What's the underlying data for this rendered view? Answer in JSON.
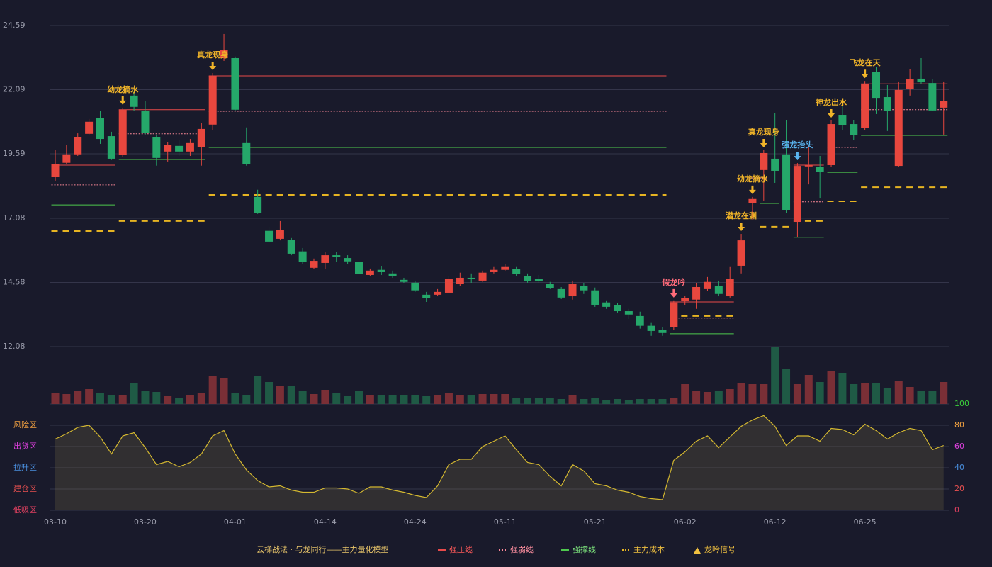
{
  "chart_data": [
    {
      "type": "candlestick",
      "ylim": [
        12.08,
        24.59
      ],
      "yticks": [
        12.08,
        14.58,
        17.08,
        19.59,
        22.09,
        24.59
      ],
      "grid": true,
      "up_color": "#e8473e",
      "down_color": "#25a86a",
      "ohlc": [
        [
          18.68,
          19.73,
          18.52,
          19.18
        ],
        [
          19.24,
          19.93,
          19.18,
          19.57
        ],
        [
          19.57,
          20.39,
          19.51,
          20.23
        ],
        [
          20.37,
          20.95,
          20.34,
          20.84
        ],
        [
          21.0,
          21.25,
          19.98,
          20.17
        ],
        [
          20.28,
          20.45,
          19.35,
          19.4
        ],
        [
          19.54,
          21.39,
          19.48,
          21.31
        ],
        [
          21.86,
          22.05,
          21.25,
          21.42
        ],
        [
          21.25,
          21.66,
          20.34,
          20.42
        ],
        [
          20.23,
          20.34,
          19.13,
          19.43
        ],
        [
          19.68,
          20.06,
          19.29,
          19.93
        ],
        [
          19.9,
          20.12,
          19.51,
          19.68
        ],
        [
          19.68,
          20.17,
          19.51,
          20.01
        ],
        [
          19.84,
          20.78,
          19.13,
          20.56
        ],
        [
          20.73,
          22.74,
          20.51,
          22.63
        ],
        [
          23.32,
          24.26,
          23.21,
          23.65
        ],
        [
          23.32,
          23.38,
          21.25,
          21.31
        ],
        [
          20.01,
          20.62,
          19.13,
          19.18
        ],
        [
          17.91,
          18.19,
          17.25,
          17.28
        ],
        [
          16.59,
          16.75,
          16.12,
          16.17
        ],
        [
          16.28,
          16.97,
          16.22,
          16.61
        ],
        [
          16.25,
          16.31,
          15.64,
          15.7
        ],
        [
          15.79,
          15.92,
          15.31,
          15.37
        ],
        [
          15.15,
          15.51,
          15.09,
          15.42
        ],
        [
          15.34,
          15.75,
          15.09,
          15.64
        ],
        [
          15.64,
          15.78,
          15.37,
          15.56
        ],
        [
          15.53,
          15.64,
          15.31,
          15.4
        ],
        [
          15.37,
          15.42,
          14.62,
          14.9
        ],
        [
          14.87,
          15.12,
          14.82,
          15.04
        ],
        [
          15.07,
          15.2,
          14.87,
          14.98
        ],
        [
          14.93,
          15.04,
          14.76,
          14.82
        ],
        [
          14.68,
          14.76,
          14.54,
          14.6
        ],
        [
          14.57,
          14.62,
          14.21,
          14.27
        ],
        [
          14.1,
          14.21,
          13.82,
          13.96
        ],
        [
          14.1,
          14.32,
          14.04,
          14.21
        ],
        [
          14.18,
          14.82,
          14.16,
          14.73
        ],
        [
          14.51,
          14.96,
          14.43,
          14.76
        ],
        [
          14.76,
          14.93,
          14.54,
          14.71
        ],
        [
          14.65,
          15.04,
          14.6,
          14.96
        ],
        [
          14.98,
          15.18,
          14.93,
          15.07
        ],
        [
          15.07,
          15.31,
          15.01,
          15.18
        ],
        [
          15.09,
          15.18,
          14.82,
          14.9
        ],
        [
          14.82,
          14.93,
          14.57,
          14.62
        ],
        [
          14.71,
          14.87,
          14.54,
          14.62
        ],
        [
          14.51,
          14.6,
          14.32,
          14.37
        ],
        [
          14.32,
          14.4,
          13.93,
          13.99
        ],
        [
          14.04,
          14.65,
          13.91,
          14.51
        ],
        [
          14.43,
          14.54,
          14.13,
          14.27
        ],
        [
          14.27,
          14.38,
          13.63,
          13.71
        ],
        [
          13.8,
          13.88,
          13.55,
          13.63
        ],
        [
          13.69,
          13.77,
          13.41,
          13.46
        ],
        [
          13.46,
          13.55,
          13.16,
          13.33
        ],
        [
          13.27,
          13.44,
          12.78,
          12.89
        ],
        [
          12.89,
          13.0,
          12.5,
          12.69
        ],
        [
          12.72,
          12.83,
          12.5,
          12.61
        ],
        [
          12.83,
          13.88,
          12.72,
          13.8
        ],
        [
          13.85,
          14.04,
          13.71,
          13.96
        ],
        [
          13.91,
          14.54,
          13.55,
          14.4
        ],
        [
          14.32,
          14.79,
          14.24,
          14.6
        ],
        [
          14.43,
          14.65,
          14.04,
          14.13
        ],
        [
          14.04,
          15.18,
          13.99,
          14.73
        ],
        [
          15.23,
          16.47,
          14.93,
          16.22
        ],
        [
          17.66,
          17.91,
          17.03,
          17.83
        ],
        [
          18.96,
          19.73,
          17.77,
          19.62
        ],
        [
          19.4,
          21.17,
          18.46,
          18.93
        ],
        [
          19.57,
          20.89,
          17.3,
          17.41
        ],
        [
          16.94,
          19.23,
          16.36,
          19.12
        ],
        [
          19.1,
          19.84,
          18.4,
          19.15
        ],
        [
          19.07,
          19.51,
          17.85,
          18.9
        ],
        [
          19.15,
          20.89,
          19.07,
          20.75
        ],
        [
          21.11,
          21.44,
          20.53,
          20.7
        ],
        [
          20.75,
          20.89,
          20.14,
          20.31
        ],
        [
          20.61,
          22.43,
          20.53,
          22.32
        ],
        [
          22.79,
          22.96,
          21.14,
          21.77
        ],
        [
          21.8,
          22.27,
          20.48,
          21.25
        ],
        [
          19.12,
          22.41,
          19.07,
          22.08
        ],
        [
          22.13,
          22.88,
          21.86,
          22.49
        ],
        [
          22.52,
          23.32,
          22.32,
          22.38
        ],
        [
          22.35,
          22.49,
          21.25,
          21.28
        ],
        [
          21.39,
          22.41,
          20.34,
          21.64
        ]
      ],
      "levels": [
        {
          "name": "强压线",
          "color": "#e84a4a",
          "text_color": "#ff5a5a",
          "dashed": false,
          "segments": [
            [
              0,
              5,
              19.15
            ],
            [
              6,
              13,
              21.31
            ],
            [
              14,
              54,
              22.63
            ],
            [
              55,
              60,
              13.82
            ],
            [
              66,
              68,
              19.15
            ],
            [
              72,
              79,
              22.32
            ]
          ]
        },
        {
          "name": "强弱线",
          "color": "#ff8a9a",
          "text_color": "#ff8fa0",
          "dashed": true,
          "segments": [
            [
              0,
              5,
              18.38
            ],
            [
              6,
              13,
              20.37
            ],
            [
              14,
              54,
              21.25
            ],
            [
              55,
              60,
              13.19
            ],
            [
              62,
              63,
              18.65
            ],
            [
              66,
              68,
              17.72
            ],
            [
              69,
              71,
              19.84
            ],
            [
              72,
              79,
              21.31
            ]
          ]
        },
        {
          "name": "强撑线",
          "color": "#4ec94e",
          "text_color": "#7be07b",
          "dashed": false,
          "segments": [
            [
              0,
              5,
              17.6
            ],
            [
              6,
              13,
              19.37
            ],
            [
              14,
              54,
              19.84
            ],
            [
              55,
              60,
              12.58
            ],
            [
              63,
              64,
              17.66
            ],
            [
              66,
              68,
              16.34
            ],
            [
              69,
              71,
              18.87
            ],
            [
              72,
              79,
              20.31
            ]
          ]
        },
        {
          "name": "主力成本",
          "color": "#e6b422",
          "text_color": "#f0c040",
          "dashed": true,
          "segments": [
            [
              0,
              5,
              16.58
            ],
            [
              6,
              13,
              16.97
            ],
            [
              14,
              54,
              17.99
            ],
            [
              55,
              60,
              13.27
            ],
            [
              63,
              65,
              16.75
            ],
            [
              66,
              68,
              16.97
            ],
            [
              69,
              71,
              17.74
            ],
            [
              72,
              79,
              18.29
            ]
          ]
        }
      ],
      "signals": [
        {
          "label": "幼龙摘水",
          "index": 6,
          "color": "#f0b429"
        },
        {
          "label": "真龙现身",
          "index": 14,
          "color": "#f0b429"
        },
        {
          "label": "假龙吟",
          "index": 55,
          "color": "#ff6b7a"
        },
        {
          "label": "潜龙在渊",
          "index": 61,
          "color": "#f0b429"
        },
        {
          "label": "幼龙摘水",
          "index": 62,
          "color": "#f0b429"
        },
        {
          "label": "真龙现身",
          "index": 63,
          "color": "#f0b429"
        },
        {
          "label": "强龙抬头",
          "index": 66,
          "color": "#5ab4f0"
        },
        {
          "label": "神龙出水",
          "index": 69,
          "color": "#f0b429"
        },
        {
          "label": "飞龙在天",
          "index": 72,
          "color": "#f0b429"
        }
      ],
      "legend_title": "云梯战法 · 与龙同行——主力量化模型",
      "legend_title_color": "#e8c56a",
      "signal_legend": {
        "name": "龙吟信号",
        "color": "#f0c040"
      }
    },
    {
      "type": "bar",
      "ylim": [
        0,
        81
      ],
      "up_color": "#7a2f36",
      "down_color": "#1f5a45",
      "values": [
        16,
        14,
        19,
        21,
        15,
        13,
        13,
        29,
        18,
        17,
        11,
        8,
        12,
        15,
        39,
        37,
        15,
        13,
        39,
        31,
        26,
        25,
        18,
        14,
        20,
        15,
        11,
        18,
        12,
        12,
        12,
        12,
        12,
        11,
        12,
        16,
        12,
        12,
        14,
        14,
        14,
        8,
        9,
        9,
        8,
        7,
        12,
        7,
        8,
        6,
        7,
        6,
        7,
        7,
        7,
        8,
        28,
        19,
        17,
        18,
        21,
        29,
        28,
        28,
        81,
        49,
        28,
        41,
        31,
        46,
        44,
        28,
        29,
        30,
        23,
        32,
        24,
        19,
        19,
        31
      ]
    },
    {
      "type": "area",
      "color": "#d4b830",
      "ylim": [
        0,
        100
      ],
      "yticks": [
        0,
        20,
        40,
        60,
        80,
        100
      ],
      "ytick_colors": [
        "#e04060",
        "#e85050",
        "#4a90e0",
        "#e040e0",
        "#f0a040",
        "#3ad13a"
      ],
      "zones": [
        {
          "value": 80,
          "label": "风险区",
          "color": "#f0a040"
        },
        {
          "value": 60,
          "label": "出货区",
          "color": "#e040e0"
        },
        {
          "value": 40,
          "label": "拉升区",
          "color": "#4a90e0"
        },
        {
          "value": 20,
          "label": "建仓区",
          "color": "#e85050"
        },
        {
          "value": 0,
          "label": "低吸区",
          "color": "#e04060"
        }
      ],
      "categories": [
        "03-10",
        null,
        null,
        null,
        null,
        null,
        null,
        null,
        "03-20",
        null,
        null,
        null,
        null,
        null,
        null,
        null,
        "04-01",
        null,
        null,
        null,
        null,
        null,
        null,
        null,
        "04-14",
        null,
        null,
        null,
        null,
        null,
        null,
        null,
        "04-24",
        null,
        null,
        null,
        null,
        null,
        null,
        null,
        "05-11",
        null,
        null,
        null,
        null,
        null,
        null,
        null,
        "05-21",
        null,
        null,
        null,
        null,
        null,
        null,
        null,
        "06-02",
        null,
        null,
        null,
        null,
        null,
        null,
        null,
        "06-12",
        null,
        null,
        null,
        null,
        null,
        null,
        null,
        "06-25",
        null,
        null,
        null,
        null,
        null,
        null,
        null
      ],
      "values": [
        67,
        72,
        78,
        80,
        69,
        53,
        70,
        73,
        59,
        43,
        46,
        41,
        45,
        53,
        70,
        75,
        53,
        38,
        28,
        22,
        23,
        19,
        17,
        17,
        21,
        21,
        20,
        16,
        22,
        22,
        19,
        17,
        14,
        12,
        23,
        43,
        48,
        48,
        60,
        65,
        70,
        57,
        45,
        43,
        32,
        23,
        43,
        37,
        25,
        23,
        19,
        17,
        13,
        11,
        10,
        47,
        55,
        65,
        70,
        59,
        69,
        79,
        85,
        89,
        79,
        61,
        70,
        70,
        65,
        77,
        76,
        71,
        81,
        75,
        67,
        73,
        77,
        75,
        57,
        61
      ]
    }
  ]
}
